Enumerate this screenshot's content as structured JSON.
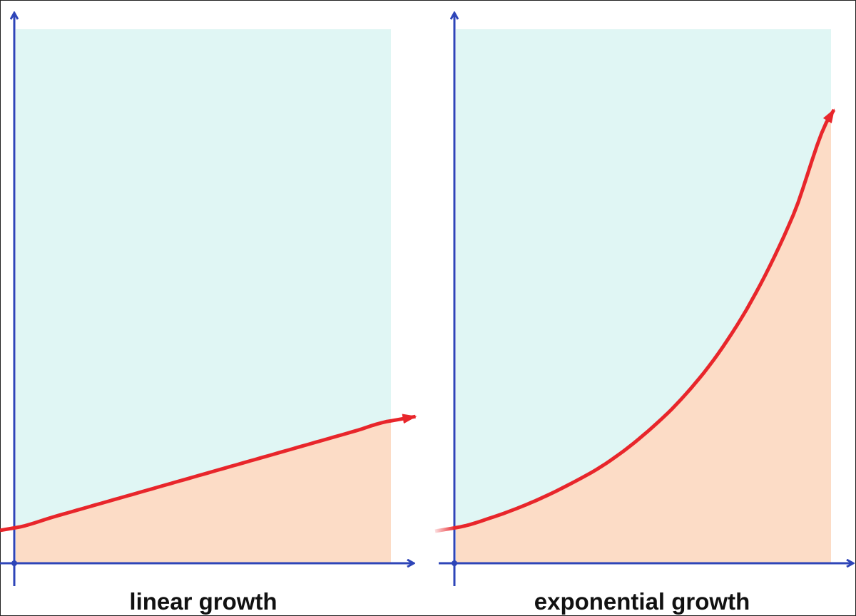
{
  "colors": {
    "background": "#ffffff",
    "frame": "#222222",
    "axis": "#2e45b8",
    "curve": "#e8262b",
    "area_above": "#e0f6f4",
    "area_below": "#fcdcc6",
    "caption": "#111111"
  },
  "chart_data": [
    {
      "type": "line",
      "title": "linear growth",
      "xlabel": "",
      "ylabel": "",
      "grid": false,
      "legend": "none",
      "tick_labels": false,
      "shaded_region": "area under curve shaded peach, area above shaded light cyan",
      "series": [
        {
          "x": [
            0,
            1,
            2,
            3,
            4,
            5,
            6,
            7,
            8,
            9,
            10
          ],
          "values": [
            1.0,
            1.3,
            1.6,
            1.9,
            2.2,
            2.5,
            2.8,
            3.1,
            3.4,
            3.7,
            4.0
          ]
        }
      ],
      "xlim": [
        0,
        10
      ],
      "ylim": [
        0,
        15
      ]
    },
    {
      "type": "line",
      "title": "exponential growth",
      "xlabel": "",
      "ylabel": "",
      "grid": false,
      "legend": "none",
      "tick_labels": false,
      "shaded_region": "area under curve shaded peach, area above shaded light cyan",
      "series": [
        {
          "x": [
            0,
            1,
            2,
            3,
            4,
            5,
            6,
            7,
            8,
            9,
            10
          ],
          "values": [
            1.0,
            1.3,
            1.7,
            2.2,
            2.8,
            3.6,
            4.6,
            5.9,
            7.6,
            9.8,
            12.6
          ]
        }
      ],
      "xlim": [
        0,
        10
      ],
      "ylim": [
        0,
        15
      ]
    }
  ]
}
